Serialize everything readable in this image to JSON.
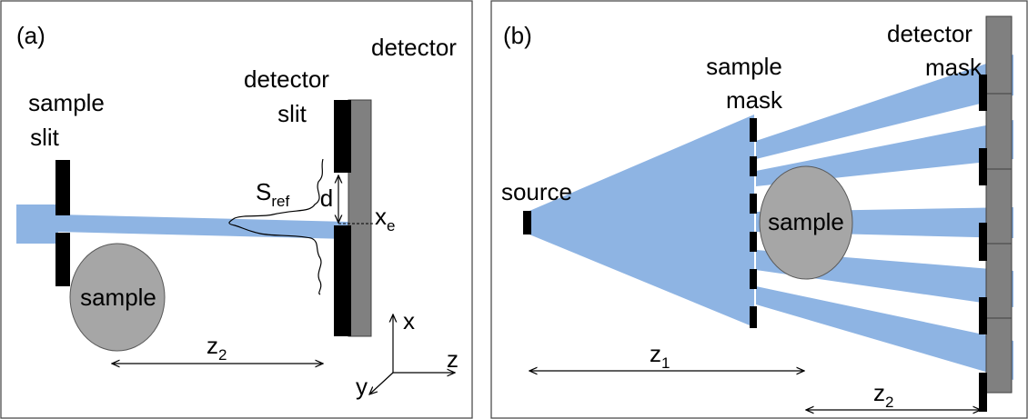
{
  "panel_a": {
    "tag": "(a)",
    "sample_slit": [
      "sample",
      "slit"
    ],
    "detector_slit": [
      "detector",
      "slit"
    ],
    "detector": "detector",
    "sample": "sample",
    "s_ref_main": "S",
    "s_ref_sub": "ref",
    "d": "d",
    "xe_main": "x",
    "xe_sub": "e",
    "z2_main": "z",
    "z2_sub": "2",
    "axis_x": "x",
    "axis_y": "y",
    "axis_z": "z"
  },
  "panel_b": {
    "tag": "(b)",
    "source": "source",
    "sample_mask": [
      "sample",
      "mask"
    ],
    "detector_mask": [
      "detector",
      "mask"
    ],
    "sample": "sample",
    "z1_main": "z",
    "z1_sub": "1",
    "z2_main": "z",
    "z2_sub": "2"
  },
  "colors": {
    "beam": "#8eb4e3",
    "sample_fill": "#a6a6a6",
    "detector_fill": "#808080",
    "slit": "#000000"
  }
}
